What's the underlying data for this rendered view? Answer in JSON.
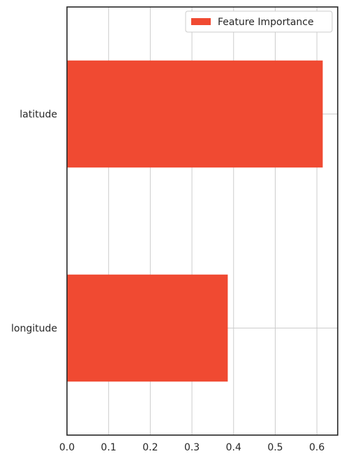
{
  "chart_data": {
    "type": "bar",
    "orientation": "horizontal",
    "categories": [
      "longitude",
      "latitude"
    ],
    "series": [
      {
        "name": "Feature Importance",
        "values": [
          0.386,
          0.614
        ],
        "color": "#f04a32"
      }
    ],
    "xlim": [
      0,
      0.65
    ],
    "xticks": [
      "0.0",
      "0.1",
      "0.2",
      "0.3",
      "0.4",
      "0.5",
      "0.6"
    ],
    "xtick_values": [
      0,
      0.1,
      0.2,
      0.3,
      0.4,
      0.5,
      0.6
    ],
    "grid": true,
    "legend_position": "top-right",
    "colors": {
      "grid": "#cccccc",
      "axis": "#262626",
      "text": "#262626"
    }
  }
}
